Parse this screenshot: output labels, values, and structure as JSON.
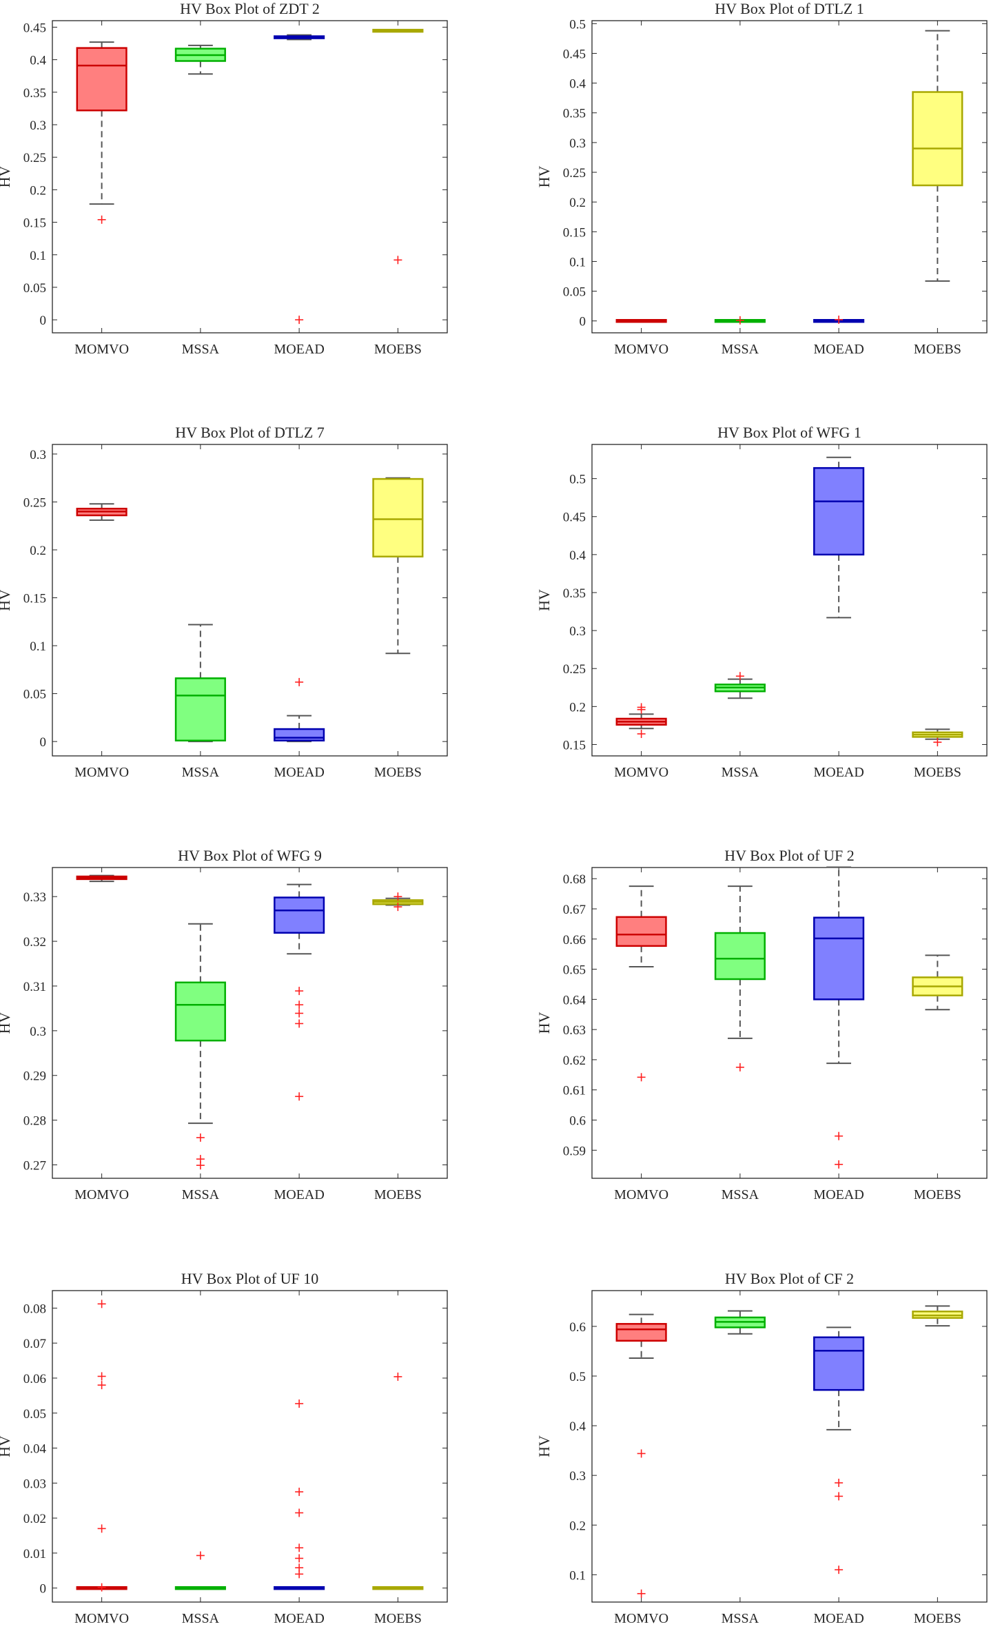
{
  "figure": {
    "description": "HV box plots of four algorithms on eight test problems"
  },
  "chart_data": [
    {
      "type": "box",
      "title": "HV Box Plot of ZDT 2",
      "ylabel": "HV",
      "ylim": [
        -0.02,
        0.46
      ],
      "yticks": [
        0,
        0.05,
        0.1,
        0.15,
        0.2,
        0.25,
        0.3,
        0.35,
        0.4,
        0.45
      ],
      "categories": [
        "MOMVO",
        "MSSA",
        "MOEAD",
        "MOEBS"
      ],
      "boxes": [
        {
          "name": "MOMVO",
          "whisker_low": 0.178,
          "q1": 0.322,
          "median": 0.391,
          "q3": 0.418,
          "whisker_high": 0.427,
          "outliers": [
            0.154
          ]
        },
        {
          "name": "MSSA",
          "whisker_low": 0.378,
          "q1": 0.398,
          "median": 0.407,
          "q3": 0.417,
          "whisker_high": 0.422,
          "outliers": []
        },
        {
          "name": "MOEAD",
          "whisker_low": 0.431,
          "q1": 0.433,
          "median": 0.435,
          "q3": 0.436,
          "whisker_high": 0.438,
          "outliers": [
            0.0
          ]
        },
        {
          "name": "MOEBS",
          "whisker_low": 0.443,
          "q1": 0.444,
          "median": 0.444,
          "q3": 0.445,
          "whisker_high": 0.445,
          "outliers": [
            0.092
          ]
        }
      ]
    },
    {
      "type": "box",
      "title": "HV Box Plot of DTLZ 1",
      "ylabel": "HV",
      "ylim": [
        -0.02,
        0.505
      ],
      "yticks": [
        0,
        0.05,
        0.1,
        0.15,
        0.2,
        0.25,
        0.3,
        0.35,
        0.4,
        0.45,
        0.5
      ],
      "categories": [
        "MOMVO",
        "MSSA",
        "MOEAD",
        "MOEBS"
      ],
      "boxes": [
        {
          "name": "MOMVO",
          "whisker_low": 0,
          "q1": 0,
          "median": 0,
          "q3": 0,
          "whisker_high": 0,
          "outliers": []
        },
        {
          "name": "MSSA",
          "whisker_low": 0,
          "q1": 0,
          "median": 0,
          "q3": 0,
          "whisker_high": 0,
          "outliers": [
            0.001
          ]
        },
        {
          "name": "MOEAD",
          "whisker_low": 0,
          "q1": 0,
          "median": 0,
          "q3": 0,
          "whisker_high": 0,
          "outliers": [
            0.002
          ]
        },
        {
          "name": "MOEBS",
          "whisker_low": 0.067,
          "q1": 0.228,
          "median": 0.29,
          "q3": 0.385,
          "whisker_high": 0.488,
          "outliers": []
        }
      ]
    },
    {
      "type": "box",
      "title": "HV Box Plot of DTLZ 7",
      "ylabel": "HV",
      "ylim": [
        -0.015,
        0.31
      ],
      "yticks": [
        0,
        0.05,
        0.1,
        0.15,
        0.2,
        0.25,
        0.3
      ],
      "categories": [
        "MOMVO",
        "MSSA",
        "MOEAD",
        "MOEBS"
      ],
      "boxes": [
        {
          "name": "MOMVO",
          "whisker_low": 0.231,
          "q1": 0.236,
          "median": 0.24,
          "q3": 0.243,
          "whisker_high": 0.248,
          "outliers": []
        },
        {
          "name": "MSSA",
          "whisker_low": 0,
          "q1": 0.001,
          "median": 0.048,
          "q3": 0.066,
          "whisker_high": 0.122,
          "outliers": []
        },
        {
          "name": "MOEAD",
          "whisker_low": 0,
          "q1": 0.001,
          "median": 0.004,
          "q3": 0.013,
          "whisker_high": 0.027,
          "outliers": [
            0.062
          ]
        },
        {
          "name": "MOEBS",
          "whisker_low": 0.092,
          "q1": 0.193,
          "median": 0.232,
          "q3": 0.274,
          "whisker_high": 0.275,
          "outliers": []
        }
      ]
    },
    {
      "type": "box",
      "title": "HV Box Plot of WFG 1",
      "ylabel": "HV",
      "ylim": [
        0.135,
        0.545
      ],
      "yticks": [
        0.15,
        0.2,
        0.25,
        0.3,
        0.35,
        0.4,
        0.45,
        0.5
      ],
      "categories": [
        "MOMVO",
        "MSSA",
        "MOEAD",
        "MOEBS"
      ],
      "boxes": [
        {
          "name": "MOMVO",
          "whisker_low": 0.171,
          "q1": 0.176,
          "median": 0.18,
          "q3": 0.184,
          "whisker_high": 0.19,
          "outliers": [
            0.164,
            0.196,
            0.199
          ]
        },
        {
          "name": "MSSA",
          "whisker_low": 0.211,
          "q1": 0.22,
          "median": 0.225,
          "q3": 0.229,
          "whisker_high": 0.236,
          "outliers": [
            0.24
          ]
        },
        {
          "name": "MOEAD",
          "whisker_low": 0.317,
          "q1": 0.4,
          "median": 0.47,
          "q3": 0.514,
          "whisker_high": 0.528,
          "outliers": []
        },
        {
          "name": "MOEBS",
          "whisker_low": 0.157,
          "q1": 0.16,
          "median": 0.163,
          "q3": 0.166,
          "whisker_high": 0.17,
          "outliers": [
            0.153
          ]
        }
      ]
    },
    {
      "type": "box",
      "title": "HV Box Plot of WFG 9",
      "ylabel": "HV",
      "ylim": [
        0.267,
        0.3365
      ],
      "yticks": [
        0.27,
        0.28,
        0.29,
        0.3,
        0.31,
        0.32,
        0.33
      ],
      "categories": [
        "MOMVO",
        "MSSA",
        "MOEAD",
        "MOEBS"
      ],
      "boxes": [
        {
          "name": "MOMVO",
          "whisker_low": 0.3334,
          "q1": 0.3339,
          "median": 0.3342,
          "q3": 0.3345,
          "whisker_high": 0.3347,
          "outliers": []
        },
        {
          "name": "MSSA",
          "whisker_low": 0.2793,
          "q1": 0.2978,
          "median": 0.3058,
          "q3": 0.3108,
          "whisker_high": 0.3239,
          "outliers": [
            0.2761,
            0.2713,
            0.2699
          ]
        },
        {
          "name": "MOEAD",
          "whisker_low": 0.3172,
          "q1": 0.3219,
          "median": 0.3269,
          "q3": 0.3298,
          "whisker_high": 0.3327,
          "outliers": [
            0.3089,
            0.3058,
            0.3039,
            0.3016,
            0.2853
          ]
        },
        {
          "name": "MOEBS",
          "whisker_low": 0.3281,
          "q1": 0.3283,
          "median": 0.3288,
          "q3": 0.3292,
          "whisker_high": 0.3296,
          "outliers": [
            0.33,
            0.3277
          ]
        }
      ]
    },
    {
      "type": "box",
      "title": "HV Box Plot of UF 2",
      "ylabel": "HV",
      "ylim": [
        0.5807,
        0.6837
      ],
      "yticks": [
        0.59,
        0.6,
        0.61,
        0.62,
        0.63,
        0.64,
        0.65,
        0.66,
        0.67,
        0.68
      ],
      "categories": [
        "MOMVO",
        "MSSA",
        "MOEAD",
        "MOEBS"
      ],
      "boxes": [
        {
          "name": "MOMVO",
          "whisker_low": 0.6508,
          "q1": 0.6577,
          "median": 0.6615,
          "q3": 0.6673,
          "whisker_high": 0.6775,
          "outliers": [
            0.6142
          ]
        },
        {
          "name": "MSSA",
          "whisker_low": 0.6271,
          "q1": 0.6467,
          "median": 0.6535,
          "q3": 0.662,
          "whisker_high": 0.6775,
          "outliers": [
            0.6175
          ]
        },
        {
          "name": "MOEAD",
          "whisker_low": 0.6188,
          "q1": 0.64,
          "median": 0.6602,
          "q3": 0.6671,
          "whisker_high": 0.6838,
          "outliers": [
            0.5947,
            0.5853
          ]
        },
        {
          "name": "MOEBS",
          "whisker_low": 0.6366,
          "q1": 0.6413,
          "median": 0.6443,
          "q3": 0.6473,
          "whisker_high": 0.6546,
          "outliers": []
        }
      ]
    },
    {
      "type": "box",
      "title": "HV Box Plot of UF 10",
      "ylabel": "HV",
      "ylim": [
        -0.004,
        0.085
      ],
      "yticks": [
        0,
        0.01,
        0.02,
        0.03,
        0.04,
        0.05,
        0.06,
        0.07,
        0.08
      ],
      "categories": [
        "MOMVO",
        "MSSA",
        "MOEAD",
        "MOEBS"
      ],
      "boxes": [
        {
          "name": "MOMVO",
          "whisker_low": 0,
          "q1": 0,
          "median": 0,
          "q3": 0,
          "whisker_high": 0,
          "outliers": [
            0.0812,
            0.0605,
            0.058,
            0.017,
            0.0002
          ]
        },
        {
          "name": "MSSA",
          "whisker_low": 0,
          "q1": 0,
          "median": 0,
          "q3": 0,
          "whisker_high": 0,
          "outliers": [
            0.0093
          ]
        },
        {
          "name": "MOEAD",
          "whisker_low": 0,
          "q1": 0,
          "median": 0,
          "q3": 0,
          "whisker_high": 0,
          "outliers": [
            0.0527,
            0.0275,
            0.0215,
            0.0115,
            0.0085,
            0.0058,
            0.004
          ]
        },
        {
          "name": "MOEBS",
          "whisker_low": 0,
          "q1": 0,
          "median": 0,
          "q3": 0,
          "whisker_high": 0,
          "outliers": [
            0.0604
          ]
        }
      ]
    },
    {
      "type": "box",
      "title": "HV Box Plot of CF 2",
      "ylabel": "HV",
      "ylim": [
        0.045,
        0.672
      ],
      "yticks": [
        0.1,
        0.2,
        0.3,
        0.4,
        0.5,
        0.6
      ],
      "categories": [
        "MOMVO",
        "MSSA",
        "MOEAD",
        "MOEBS"
      ],
      "boxes": [
        {
          "name": "MOMVO",
          "whisker_low": 0.536,
          "q1": 0.571,
          "median": 0.594,
          "q3": 0.605,
          "whisker_high": 0.624,
          "outliers": [
            0.344,
            0.062
          ]
        },
        {
          "name": "MSSA",
          "whisker_low": 0.585,
          "q1": 0.598,
          "median": 0.609,
          "q3": 0.618,
          "whisker_high": 0.631,
          "outliers": []
        },
        {
          "name": "MOEAD",
          "whisker_low": 0.392,
          "q1": 0.472,
          "median": 0.551,
          "q3": 0.578,
          "whisker_high": 0.598,
          "outliers": [
            0.285,
            0.258,
            0.11
          ]
        },
        {
          "name": "MOEBS",
          "whisker_low": 0.601,
          "q1": 0.617,
          "median": 0.622,
          "q3": 0.63,
          "whisker_high": 0.641,
          "outliers": []
        }
      ]
    }
  ],
  "colors": {
    "MOMVO": {
      "fill": "#ff7f7f",
      "stroke": "#cc0000"
    },
    "MSSA": {
      "fill": "#80ff80",
      "stroke": "#00b000"
    },
    "MOEAD": {
      "fill": "#8080ff",
      "stroke": "#0000b0"
    },
    "MOEBS": {
      "fill": "#ffff80",
      "stroke": "#a8a800"
    },
    "outlier": "#ff2020",
    "whisker": "#555555",
    "axis": "#262626"
  }
}
